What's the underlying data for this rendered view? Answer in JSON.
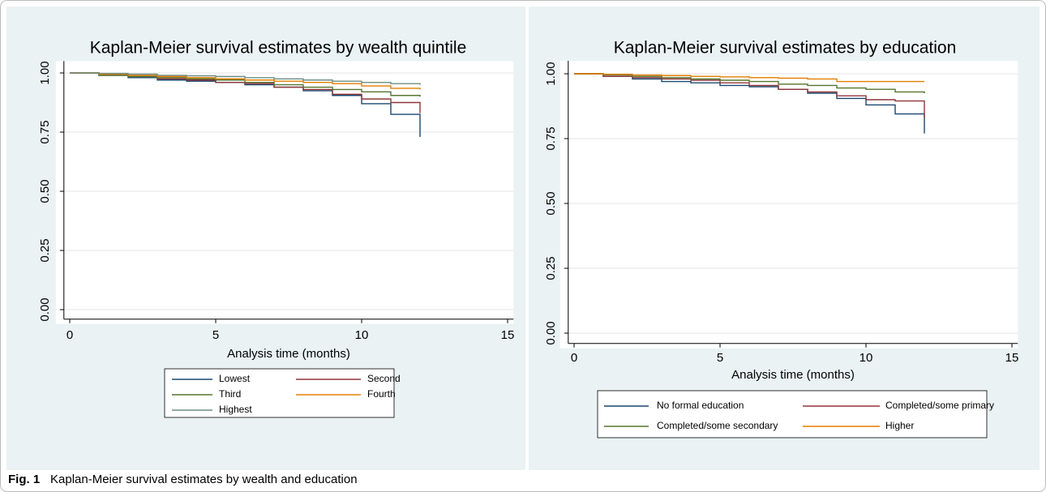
{
  "chart_data": [
    {
      "type": "step",
      "title": "Kaplan-Meier survival estimates by wealth quintile",
      "x_label": "Analysis time (months)",
      "x": [
        0,
        1,
        2,
        3,
        4,
        5,
        6,
        7,
        8,
        9,
        10,
        11,
        12
      ],
      "series": [
        {
          "name": "Lowest",
          "color": "#1a476f",
          "values": [
            1.0,
            0.99,
            0.98,
            0.97,
            0.965,
            0.96,
            0.95,
            0.94,
            0.925,
            0.905,
            0.87,
            0.825,
            0.73
          ]
        },
        {
          "name": "Second",
          "color": "#90353b",
          "values": [
            1.0,
            0.99,
            0.985,
            0.975,
            0.97,
            0.96,
            0.955,
            0.94,
            0.93,
            0.91,
            0.89,
            0.875,
            0.83
          ]
        },
        {
          "name": "Third",
          "color": "#55752f",
          "values": [
            1.0,
            0.99,
            0.985,
            0.98,
            0.975,
            0.97,
            0.96,
            0.95,
            0.94,
            0.93,
            0.92,
            0.905,
            0.9
          ]
        },
        {
          "name": "Fourth",
          "color": "#e37e00",
          "values": [
            1.0,
            0.995,
            0.99,
            0.985,
            0.98,
            0.975,
            0.97,
            0.965,
            0.96,
            0.955,
            0.945,
            0.935,
            0.93
          ]
        },
        {
          "name": "Highest",
          "color": "#6e8e84",
          "values": [
            1.0,
            0.998,
            0.995,
            0.99,
            0.988,
            0.985,
            0.98,
            0.975,
            0.97,
            0.965,
            0.96,
            0.955,
            0.95
          ]
        }
      ],
      "xlim": [
        -0.2,
        15.2
      ],
      "xticks": [
        0,
        5,
        10,
        15
      ],
      "ylim": [
        -0.04,
        1.05
      ],
      "yticks": [
        {
          "value": 0,
          "label": "0.00"
        },
        {
          "value": 0.25,
          "label": "0.25"
        },
        {
          "value": 0.5,
          "label": "0.50"
        },
        {
          "value": 0.75,
          "label": "0.75"
        },
        {
          "value": 1,
          "label": "1.00"
        }
      ],
      "grid": true,
      "legend": "bottom"
    },
    {
      "type": "step",
      "title": "Kaplan-Meier survival estimates by education",
      "x_label": "Analysis time (months)",
      "x": [
        0,
        1,
        2,
        3,
        4,
        5,
        6,
        7,
        8,
        9,
        10,
        11,
        12
      ],
      "series": [
        {
          "name": "No formal education",
          "color": "#1a476f",
          "values": [
            1.0,
            0.99,
            0.98,
            0.97,
            0.965,
            0.955,
            0.95,
            0.94,
            0.925,
            0.905,
            0.88,
            0.845,
            0.77
          ]
        },
        {
          "name": "Completed/some primary",
          "color": "#90353b",
          "values": [
            1.0,
            0.99,
            0.985,
            0.98,
            0.975,
            0.965,
            0.955,
            0.94,
            0.93,
            0.915,
            0.9,
            0.895,
            0.83
          ]
        },
        {
          "name": "Completed/some secondary",
          "color": "#55752f",
          "values": [
            1.0,
            0.995,
            0.99,
            0.985,
            0.98,
            0.975,
            0.97,
            0.96,
            0.955,
            0.945,
            0.94,
            0.93,
            0.925
          ]
        },
        {
          "name": "Higher",
          "color": "#e37e00",
          "values": [
            1.0,
            0.998,
            0.995,
            0.993,
            0.99,
            0.988,
            0.985,
            0.983,
            0.98,
            0.97,
            0.97,
            0.97,
            0.97
          ]
        }
      ],
      "xlim": [
        -0.2,
        15.2
      ],
      "xticks": [
        0,
        5,
        10,
        15
      ],
      "ylim": [
        -0.04,
        1.05
      ],
      "yticks": [
        {
          "value": 0,
          "label": "0.00"
        },
        {
          "value": 0.25,
          "label": "0.25"
        },
        {
          "value": 0.5,
          "label": "0.50"
        },
        {
          "value": 0.75,
          "label": "0.75"
        },
        {
          "value": 1,
          "label": "1.00"
        }
      ],
      "grid": true,
      "legend": "bottom"
    }
  ],
  "caption": {
    "label": "Fig. 1",
    "text": "Kaplan-Meier survival estimates by wealth and education"
  }
}
